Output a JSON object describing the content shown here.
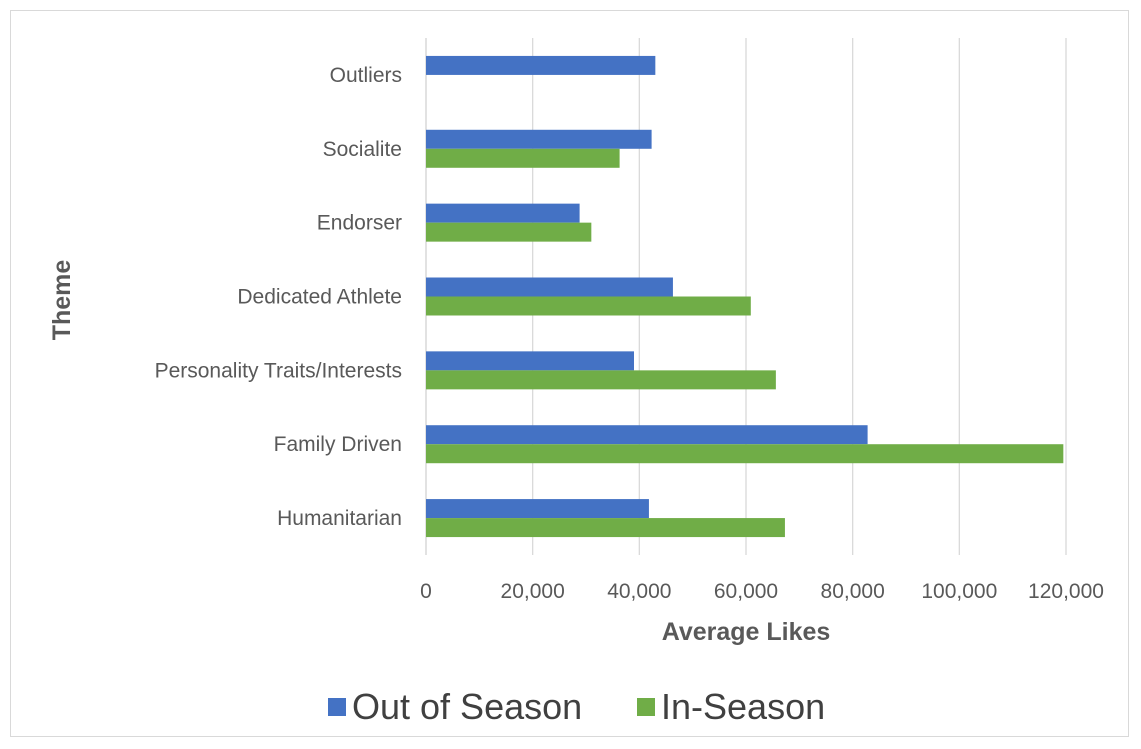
{
  "chart_data": {
    "type": "bar",
    "orientation": "horizontal",
    "title": "",
    "xlabel": "Average Likes",
    "ylabel": "Theme",
    "categories": [
      "Outliers",
      "Socialite",
      "Endorser",
      "Dedicated Athlete",
      "Personality Traits/Interests",
      "Family Driven",
      "Humanitarian"
    ],
    "series": [
      {
        "name": "Out of Season",
        "color": "#4472C4",
        "values": [
          43000,
          42300,
          28800,
          46300,
          39000,
          82800,
          41800
        ]
      },
      {
        "name": "In-Season",
        "color": "#70AD47",
        "values": [
          null,
          36300,
          31000,
          60900,
          65600,
          119500,
          67300
        ]
      }
    ],
    "xlim": [
      0,
      120000
    ],
    "xticks": [
      0,
      20000,
      40000,
      60000,
      80000,
      100000,
      120000
    ],
    "xtick_labels": [
      "0",
      "20,000",
      "40,000",
      "60,000",
      "80,000",
      "100,000",
      "120,000"
    ],
    "grid": "vertical",
    "legend_position": "bottom"
  }
}
